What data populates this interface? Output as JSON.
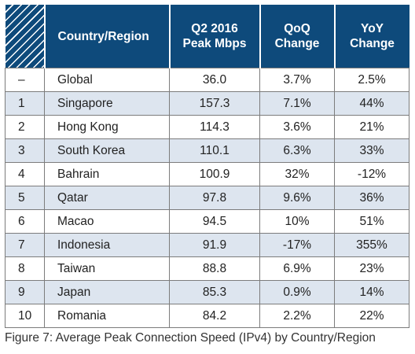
{
  "chart_data": {
    "type": "table",
    "columns": [
      "",
      "Country/Region",
      "Q2 2016 Peak Mbps",
      "QoQ Change",
      "YoY Change"
    ],
    "header": {
      "country": "Country/Region",
      "peak_line1": "Q2 2016",
      "peak_line2": "Peak Mbps",
      "qoq_line1": "QoQ",
      "qoq_line2": "Change",
      "yoy_line1": "YoY",
      "yoy_line2": "Change"
    },
    "rows": [
      {
        "rank": "–",
        "country": "Global",
        "peak": "36.0",
        "qoq": "3.7%",
        "yoy": "2.5%"
      },
      {
        "rank": "1",
        "country": "Singapore",
        "peak": "157.3",
        "qoq": "7.1%",
        "yoy": "44%"
      },
      {
        "rank": "2",
        "country": "Hong Kong",
        "peak": "114.3",
        "qoq": "3.6%",
        "yoy": "21%"
      },
      {
        "rank": "3",
        "country": "South Korea",
        "peak": "110.1",
        "qoq": "6.3%",
        "yoy": "33%"
      },
      {
        "rank": "4",
        "country": "Bahrain",
        "peak": "100.9",
        "qoq": "32%",
        "yoy": "-12%"
      },
      {
        "rank": "5",
        "country": "Qatar",
        "peak": "97.8",
        "qoq": "9.6%",
        "yoy": "36%"
      },
      {
        "rank": "6",
        "country": "Macao",
        "peak": "94.5",
        "qoq": "10%",
        "yoy": "51%"
      },
      {
        "rank": "7",
        "country": "Indonesia",
        "peak": "91.9",
        "qoq": "-17%",
        "yoy": "355%"
      },
      {
        "rank": "8",
        "country": "Taiwan",
        "peak": "88.8",
        "qoq": "6.9%",
        "yoy": "23%"
      },
      {
        "rank": "9",
        "country": "Japan",
        "peak": "85.3",
        "qoq": "0.9%",
        "yoy": "14%"
      },
      {
        "rank": "10",
        "country": "Romania",
        "peak": "84.2",
        "qoq": "2.2%",
        "yoy": "22%"
      }
    ],
    "caption": "Figure 7: Average Peak Connection Speed (IPv4) by Country/Region"
  },
  "colors": {
    "header_bg": "#0e4a7b",
    "shaded_row": "#dde5ef",
    "border": "#7c7c7c"
  }
}
